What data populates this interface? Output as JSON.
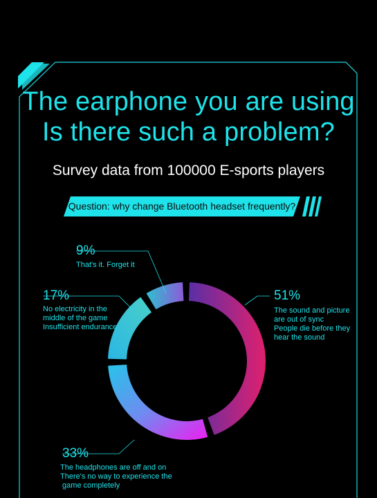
{
  "header": {
    "title_line1": "The earphone you are using",
    "title_line2": "Is there such a problem?",
    "subtitle": "Survey data from 100000 E-sports players",
    "question": "Question: why change Bluetooth headset frequently?"
  },
  "colors": {
    "accent_cyan": "#1fe3ea",
    "background": "#000000",
    "purple": "#6b2ca8",
    "magenta": "#e0209e",
    "pink": "#e61ce6",
    "blue": "#2aa7e8"
  },
  "labels": [
    {
      "percent": "9%",
      "text": [
        "That's it. Forget it"
      ]
    },
    {
      "percent": "17%",
      "text": [
        "No electricity in the",
        "middle of the game",
        "Insufficient endurance"
      ]
    },
    {
      "percent": "51%",
      "text": [
        "The sound and picture",
        "are out of sync",
        "People die before they",
        "hear the sound"
      ]
    },
    {
      "percent": "33%",
      "text": [
        "The headphones are off and on",
        "There's no way to experience the",
        " game completely"
      ]
    }
  ],
  "chart_data": {
    "type": "pie",
    "style": "donut",
    "slices": [
      {
        "label": "The sound and picture are out of sync People die before they hear the sound",
        "value": 51
      },
      {
        "label": "The headphones are off and on There's no way to experience the game completely",
        "value": 33
      },
      {
        "label": "No electricity in the middle of the game Insufficient endurance",
        "value": 17
      },
      {
        "label": "That's it. Forget it",
        "value": 9
      }
    ],
    "unit": "%"
  }
}
